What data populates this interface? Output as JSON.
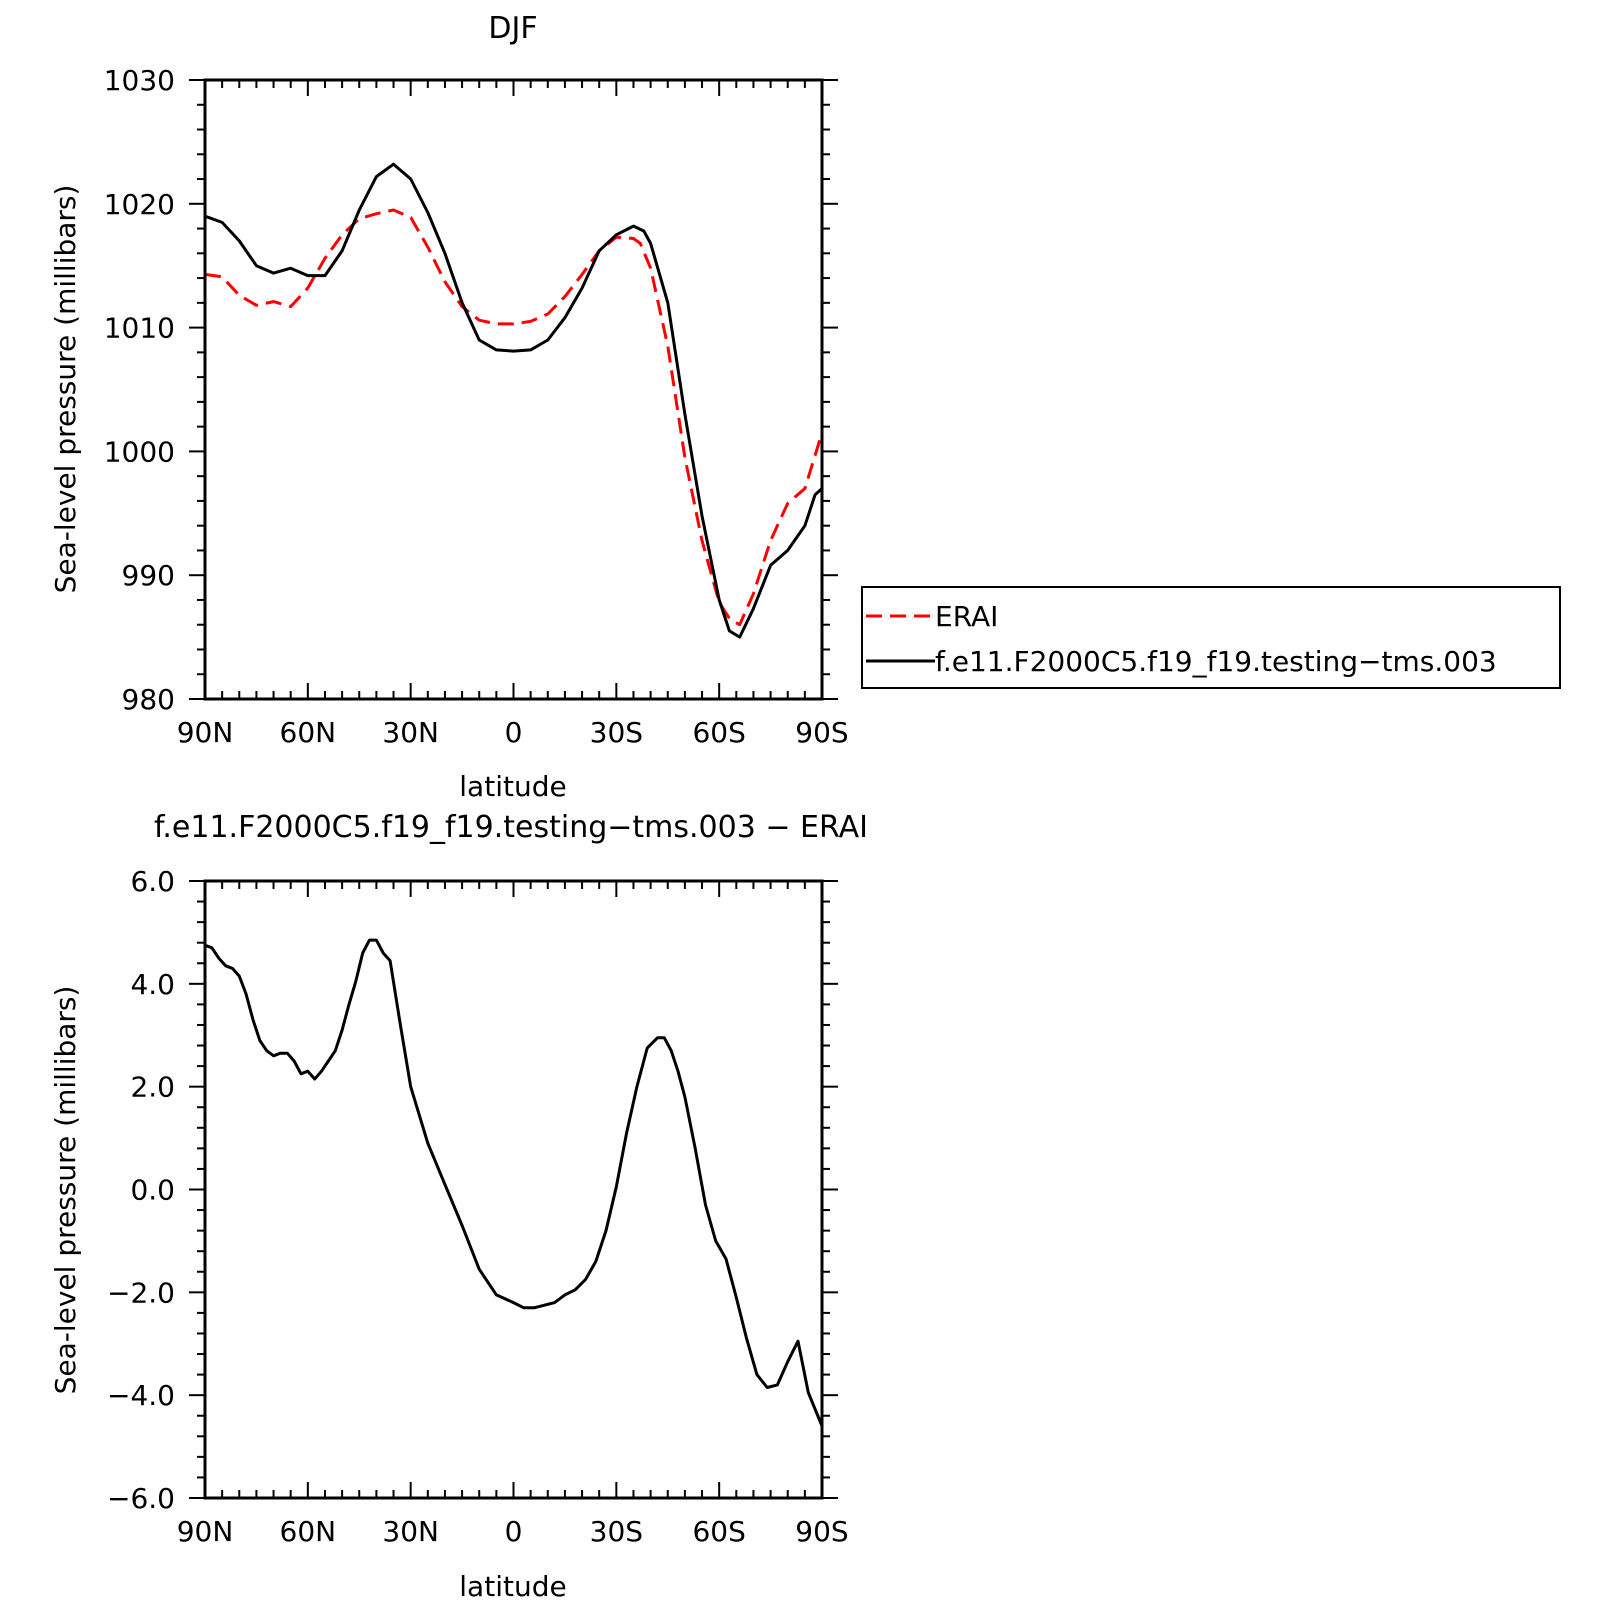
{
  "chart_data": [
    {
      "type": "line",
      "title": "DJF",
      "xlabel": "latitude",
      "ylabel": "Sea-level pressure (millibars)",
      "xlim": [
        90,
        -90
      ],
      "ylim": [
        980,
        1030
      ],
      "xticks": [
        90,
        60,
        30,
        0,
        -30,
        -60,
        -90
      ],
      "xtick_labels": [
        "90N",
        "60N",
        "30N",
        "0",
        "30S",
        "60S",
        "90S"
      ],
      "yticks": [
        980,
        990,
        1000,
        1010,
        1020,
        1030
      ],
      "ytick_labels": [
        "980",
        "990",
        "1000",
        "1010",
        "1020",
        "1030"
      ],
      "legend_position": "right",
      "series": [
        {
          "name": "ERAI",
          "color": "#ff0000",
          "dash": "dashed",
          "x": [
            90,
            85,
            80,
            75,
            70,
            65,
            60,
            55,
            50,
            45,
            40,
            35,
            30,
            25,
            20,
            15,
            10,
            5,
            0,
            -5,
            -10,
            -15,
            -20,
            -25,
            -30,
            -35,
            -37,
            -40,
            -45,
            -50,
            -55,
            -60,
            -63,
            -66,
            -70,
            -75,
            -80,
            -85,
            -90
          ],
          "values": [
            1014.3,
            1014.1,
            1012.6,
            1011.8,
            1012.1,
            1011.7,
            1013.2,
            1015.6,
            1017.5,
            1018.8,
            1019.2,
            1019.5,
            1018.9,
            1016.5,
            1013.7,
            1011.7,
            1010.6,
            1010.3,
            1010.3,
            1010.5,
            1011.1,
            1012.5,
            1014.3,
            1016.2,
            1017.3,
            1017.2,
            1016.8,
            1014.8,
            1008.5,
            999.5,
            992.8,
            987.8,
            986.5,
            986.0,
            988.5,
            992.8,
            995.8,
            997.0,
            1001.5
          ]
        },
        {
          "name": "f.e11.F2000C5.f19_f19.testing−tms.003",
          "color": "#000000",
          "dash": "solid",
          "x": [
            90,
            85,
            80,
            75,
            70,
            65,
            60,
            55,
            50,
            45,
            40,
            35,
            30,
            25,
            20,
            15,
            10,
            5,
            0,
            -5,
            -10,
            -15,
            -20,
            -25,
            -30,
            -35,
            -38,
            -40,
            -45,
            -50,
            -55,
            -60,
            -63,
            -66,
            -70,
            -75,
            -80,
            -85,
            -88,
            -90
          ],
          "values": [
            1019.0,
            1018.5,
            1017.0,
            1015.0,
            1014.4,
            1014.8,
            1014.2,
            1014.2,
            1016.2,
            1019.5,
            1022.2,
            1023.2,
            1022.0,
            1019.3,
            1016.0,
            1012.0,
            1009.0,
            1008.2,
            1008.1,
            1008.2,
            1009.0,
            1010.8,
            1013.2,
            1016.2,
            1017.5,
            1018.2,
            1017.8,
            1016.8,
            1012.0,
            1003.0,
            994.8,
            988.0,
            985.5,
            985.0,
            987.3,
            990.8,
            992.0,
            994.0,
            996.5,
            997.0
          ]
        }
      ]
    },
    {
      "type": "line",
      "title": "f.e11.F2000C5.f19_f19.testing−tms.003 − ERAI",
      "xlabel": "latitude",
      "ylabel": "Sea-level pressure (millibars)",
      "xlim": [
        90,
        -90
      ],
      "ylim": [
        -6,
        6
      ],
      "xticks": [
        90,
        60,
        30,
        0,
        -30,
        -60,
        -90
      ],
      "xtick_labels": [
        "90N",
        "60N",
        "30N",
        "0",
        "30S",
        "60S",
        "90S"
      ],
      "yticks": [
        -6,
        -4,
        -2,
        0,
        2,
        4,
        6
      ],
      "ytick_labels": [
        "−6.0",
        "−4.0",
        "−2.0",
        "0.0",
        "2.0",
        "4.0",
        "6.0"
      ],
      "series": [
        {
          "color": "#000000",
          "dash": "solid",
          "x": [
            90,
            88,
            86,
            84,
            82,
            80,
            78,
            76,
            74,
            72,
            70,
            68,
            66,
            64,
            62,
            60,
            58,
            56,
            54,
            52,
            50,
            48,
            46,
            44,
            42,
            40,
            38,
            36,
            33,
            30,
            25,
            20,
            15,
            10,
            5,
            0,
            -3,
            -6,
            -9,
            -12,
            -15,
            -18,
            -21,
            -24,
            -27,
            -30,
            -33,
            -36,
            -39,
            -42,
            -44,
            -46,
            -48,
            -50,
            -53,
            -56,
            -59,
            -62,
            -65,
            -68,
            -71,
            -74,
            -77,
            -80,
            -83,
            -86,
            -90
          ],
          "values": [
            4.75,
            4.7,
            4.5,
            4.35,
            4.3,
            4.15,
            3.8,
            3.3,
            2.9,
            2.7,
            2.6,
            2.65,
            2.65,
            2.5,
            2.25,
            2.3,
            2.15,
            2.3,
            2.5,
            2.7,
            3.1,
            3.6,
            4.05,
            4.6,
            4.85,
            4.85,
            4.6,
            4.45,
            3.2,
            2.0,
            0.9,
            0.1,
            -0.7,
            -1.55,
            -2.05,
            -2.2,
            -2.3,
            -2.3,
            -2.25,
            -2.2,
            -2.05,
            -1.95,
            -1.75,
            -1.4,
            -0.8,
            0.05,
            1.1,
            2.0,
            2.75,
            2.95,
            2.95,
            2.7,
            2.3,
            1.8,
            0.8,
            -0.3,
            -1.0,
            -1.35,
            -2.1,
            -2.9,
            -3.6,
            -3.85,
            -3.8,
            -3.35,
            -2.95,
            -3.95,
            -4.6
          ]
        }
      ]
    }
  ]
}
